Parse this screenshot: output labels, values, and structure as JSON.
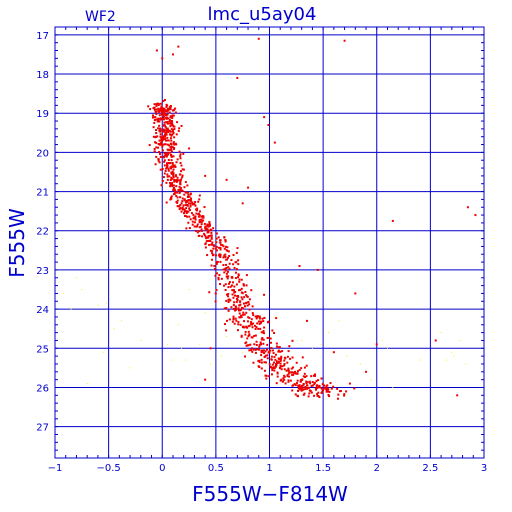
{
  "chart_data": {
    "type": "scatter",
    "title": "lmc_u5ay04",
    "panel_label": "WF2",
    "xlabel": "F555W−F814W",
    "ylabel": "F555W",
    "xlim": [
      -1,
      3
    ],
    "ylim": [
      27.8,
      16.8
    ],
    "y_inverted": true,
    "grid": true,
    "x_ticks": [
      -1,
      -0.5,
      0,
      0.5,
      1,
      1.5,
      2,
      2.5,
      3
    ],
    "x_tick_labels": [
      "−1",
      "−0.5",
      "0",
      "0.5",
      "1",
      "1.5",
      "2",
      "2.5",
      "3"
    ],
    "y_ticks": [
      17,
      18,
      19,
      20,
      21,
      22,
      23,
      24,
      25,
      26,
      27
    ],
    "y_tick_labels": [
      "17",
      "18",
      "19",
      "20",
      "21",
      "22",
      "23",
      "24",
      "25",
      "26",
      "27"
    ],
    "colors": {
      "axis": "#0000cc",
      "series_main": "#ee0000",
      "series_faint": "#ffee00"
    },
    "series": [
      {
        "color": "#ee0000",
        "marker_size": 2,
        "sequence_points": [
          [
            0.0,
            18.75
          ],
          [
            0.01,
            19.0
          ],
          [
            0.02,
            19.3
          ],
          [
            0.03,
            19.6
          ],
          [
            0.05,
            20.0
          ],
          [
            0.08,
            20.4
          ],
          [
            0.12,
            20.8
          ],
          [
            0.2,
            21.2
          ],
          [
            0.3,
            21.6
          ],
          [
            0.42,
            22.0
          ],
          [
            0.55,
            22.5
          ],
          [
            0.62,
            23.0
          ],
          [
            0.68,
            23.5
          ],
          [
            0.74,
            24.0
          ],
          [
            0.82,
            24.4
          ],
          [
            0.92,
            24.8
          ],
          [
            1.02,
            25.2
          ],
          [
            1.12,
            25.5
          ],
          [
            1.25,
            25.8
          ],
          [
            1.4,
            26.0
          ],
          [
            1.55,
            26.2
          ]
        ],
        "sequence_count": 1150,
        "sequence_color_spread": 0.06,
        "sequence_color_spread_growth": 0.06,
        "sequence_mag_spread": 0.08,
        "extra_points": [
          [
            -0.05,
            17.4
          ],
          [
            0.0,
            17.6
          ],
          [
            0.1,
            17.5
          ],
          [
            0.15,
            17.3
          ],
          [
            0.9,
            17.1
          ],
          [
            1.7,
            17.15
          ],
          [
            0.7,
            18.1
          ],
          [
            0.95,
            19.1
          ],
          [
            0.99,
            19.3
          ],
          [
            1.05,
            19.75
          ],
          [
            0.25,
            19.9
          ],
          [
            0.4,
            20.6
          ],
          [
            0.6,
            20.7
          ],
          [
            0.8,
            20.9
          ],
          [
            0.18,
            21.3
          ],
          [
            0.35,
            21.1
          ],
          [
            0.75,
            21.3
          ],
          [
            1.28,
            22.9
          ],
          [
            1.45,
            23.0
          ],
          [
            2.15,
            21.75
          ],
          [
            2.85,
            21.4
          ],
          [
            2.92,
            21.6
          ],
          [
            1.8,
            23.6
          ],
          [
            2.0,
            24.9
          ],
          [
            2.55,
            24.8
          ],
          [
            2.75,
            26.2
          ],
          [
            1.9,
            25.6
          ],
          [
            1.35,
            24.3
          ],
          [
            1.6,
            25.1
          ],
          [
            0.4,
            25.8
          ],
          [
            1.75,
            25.9
          ],
          [
            0.45,
            25.0
          ]
        ]
      },
      {
        "color": "#ffee00",
        "marker_size": 1,
        "points": [
          [
            -0.92,
            23.6
          ],
          [
            -0.85,
            24.0
          ],
          [
            -0.8,
            23.2
          ],
          [
            -0.75,
            23.5
          ],
          [
            -0.6,
            23.9
          ],
          [
            -0.52,
            23.85
          ],
          [
            -0.45,
            24.5
          ],
          [
            -0.38,
            24.3
          ],
          [
            -0.55,
            25.1
          ],
          [
            -0.3,
            25.5
          ],
          [
            -0.2,
            24.8
          ],
          [
            0.05,
            24.9
          ],
          [
            0.1,
            25.3
          ],
          [
            0.15,
            24.4
          ],
          [
            0.18,
            25.0
          ],
          [
            0.22,
            25.3
          ],
          [
            0.35,
            24.9
          ],
          [
            0.4,
            24.1
          ],
          [
            0.45,
            25.4
          ],
          [
            0.55,
            25.2
          ],
          [
            0.25,
            23.5
          ],
          [
            1.05,
            24.2
          ],
          [
            1.3,
            24.8
          ],
          [
            1.4,
            25.0
          ],
          [
            1.55,
            24.6
          ],
          [
            1.65,
            24.3
          ],
          [
            1.72,
            25.2
          ],
          [
            1.85,
            25.4
          ],
          [
            1.95,
            25.8
          ],
          [
            2.05,
            24.8
          ],
          [
            2.1,
            25.0
          ],
          [
            2.15,
            26.0
          ],
          [
            2.6,
            24.6
          ],
          [
            2.65,
            25.3
          ],
          [
            2.7,
            25.1
          ],
          [
            2.72,
            25.2
          ],
          [
            2.78,
            24.8
          ],
          [
            2.83,
            25.4
          ],
          [
            -0.7,
            25.9
          ],
          [
            0.6,
            24.7
          ],
          [
            0.75,
            25.1
          ],
          [
            1.15,
            25.6
          ],
          [
            2.4,
            25.3
          ],
          [
            1.48,
            24.9
          ]
        ]
      }
    ]
  }
}
